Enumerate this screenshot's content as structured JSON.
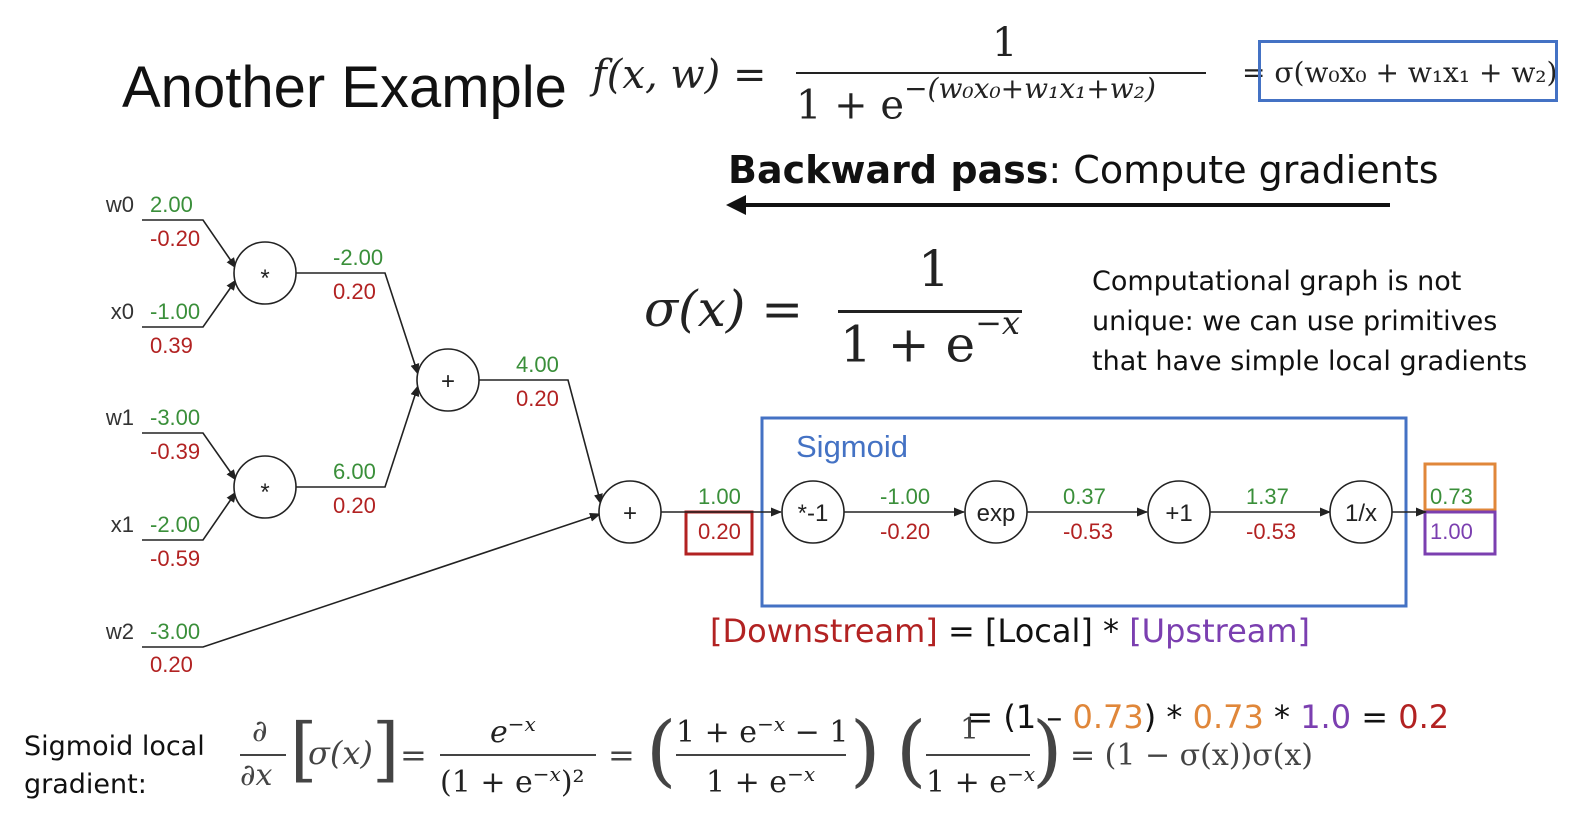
{
  "title": "Another Example",
  "formula_top": {
    "lhs": "f(x, w) =",
    "numerator": "1",
    "denominator": "1 + e",
    "exponent": "−(w₀x₀+w₁x₁+w₂)",
    "boxed": "= σ(w₀x₀ + w₁x₁ + w₂)"
  },
  "backward": {
    "bold": "Backward pass",
    "rest": ": Compute gradients"
  },
  "sigma_def": {
    "lhs": "σ(x) =",
    "numerator": "1",
    "denominator": "1 + e",
    "exponent": "−x"
  },
  "note": "Computational graph is not unique: we can use primitives that have simple local gradients",
  "sigmoid_box_label": "Sigmoid",
  "inputs": [
    {
      "name": "w0",
      "forward": "2.00",
      "grad": "-0.20"
    },
    {
      "name": "x0",
      "forward": "-1.00",
      "grad": "0.39"
    },
    {
      "name": "w1",
      "forward": "-3.00",
      "grad": "-0.39"
    },
    {
      "name": "x1",
      "forward": "-2.00",
      "grad": "-0.59"
    },
    {
      "name": "w2",
      "forward": "-3.00",
      "grad": "0.20"
    }
  ],
  "nodes": {
    "mul1": "*",
    "mul2": "*",
    "add1": "+",
    "add2": "+",
    "neg": "*-1",
    "exp": "exp",
    "plus1": "+1",
    "inv": "1/x"
  },
  "edges": {
    "mul1_out": {
      "forward": "-2.00",
      "grad": "0.20"
    },
    "mul2_out": {
      "forward": "6.00",
      "grad": "0.20"
    },
    "add1_out": {
      "forward": "4.00",
      "grad": "0.20"
    },
    "add2_out": {
      "forward": "1.00",
      "grad": "0.20"
    },
    "neg_out": {
      "forward": "-1.00",
      "grad": "-0.20"
    },
    "exp_out": {
      "forward": "0.37",
      "grad": "-0.53"
    },
    "plus1_out": {
      "forward": "1.37",
      "grad": "-0.53"
    },
    "inv_out": {
      "forward": "0.73",
      "grad": "1.00"
    }
  },
  "chain_rule": {
    "downstream": "[Downstream]",
    "eq_local": " = [Local] * ",
    "upstream": "[Upstream]",
    "line2_a": "= (1 – ",
    "v1": "0.73",
    "line2_b": ") * ",
    "v2": "0.73",
    "line2_c": " * ",
    "v3": "1.0",
    "line2_d": " = ",
    "v4": "0.2"
  },
  "sigmoid_gradient": {
    "label": "Sigmoid local gradient:",
    "d_num": "∂",
    "d_den": "∂x",
    "bracket_content": "σ(x)",
    "f1_num": "e",
    "f1_num_exp": "−x",
    "f1_den": "(1 + e",
    "f1_den_exp": "−x",
    "f1_den_close": ")²",
    "f2_num": "1 + e",
    "f2_num_exp": "−x",
    "f2_num_tail": " − 1",
    "f2_den": "1 + e",
    "f2_den_exp": "−x",
    "f3_num": "1",
    "f3_den": "1 + e",
    "f3_den_exp": "−x",
    "result": "= (1 − σ(x))σ(x)"
  },
  "colors": {
    "forward": "#3a8f3a",
    "gradient": "#b22222",
    "box_blue": "#4472c4",
    "box_red": "#b22222",
    "box_orange": "#e0873a",
    "box_purple": "#7b3fb0"
  }
}
